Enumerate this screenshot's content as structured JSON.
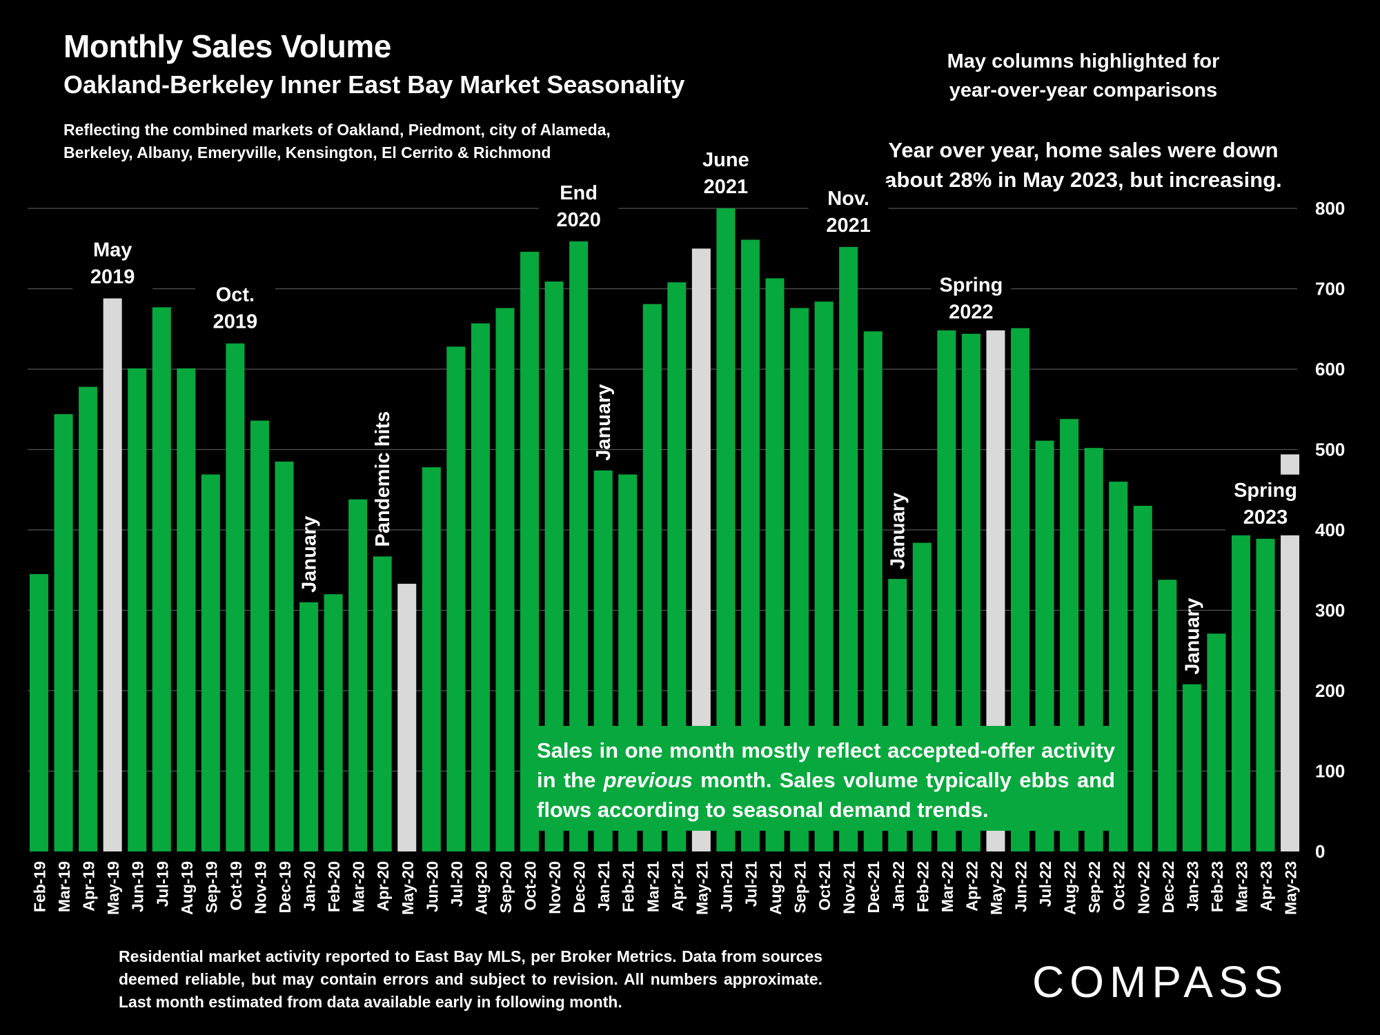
{
  "header": {
    "title": "Monthly Sales Volume",
    "subtitle": "Oakland-Berkeley Inner East Bay Market Seasonality",
    "description_line1": "Reflecting the combined markets of Oakland, Piedmont, city of Alameda,",
    "description_line2": "Berkeley, Albany, Emeryville, Kensington, El Cerrito & Richmond"
  },
  "notes": {
    "may_highlight_line1": "May columns highlighted for",
    "may_highlight_line2": "year-over-year comparisons",
    "yoy_line1": "Year over year, home sales were down",
    "yoy_line2": "about 28% in May 2023, but increasing."
  },
  "green_box": {
    "text_before": "Sales in one month mostly reflect accepted-offer activity in the ",
    "text_italic": "previous",
    "text_after": " month. Sales volume typically ebbs and flows according to seasonal demand trends."
  },
  "footer": {
    "text": "Residential market activity reported to East Bay MLS, per Broker Metrics. Data from sources deemed reliable, but may contain errors and subject to revision. All numbers approximate. Last month estimated from data available early in following month."
  },
  "logo": {
    "text": "COMPASS"
  },
  "colors": {
    "green": "#07a83e",
    "highlight": "#d9d9d9",
    "background": "#000000",
    "grid": "#555555"
  },
  "chart_data": {
    "type": "bar",
    "categories": [
      "Feb-19",
      "Mar-19",
      "Apr-19",
      "May-19",
      "Jun-19",
      "Jul-19",
      "Aug-19",
      "Sep-19",
      "Oct-19",
      "Nov-19",
      "Dec-19",
      "Jan-20",
      "Feb-20",
      "Mar-20",
      "Apr-20",
      "May-20",
      "Jun-20",
      "Jul-20",
      "Aug-20",
      "Sep-20",
      "Oct-20",
      "Nov-20",
      "Dec-20",
      "Jan-21",
      "Feb-21",
      "Mar-21",
      "Apr-21",
      "May-21",
      "Jun-21",
      "Jul-21",
      "Aug-21",
      "Sep-21",
      "Oct-21",
      "Nov-21",
      "Dec-21",
      "Jan-22",
      "Feb-22",
      "Mar-22",
      "Apr-22",
      "May-22",
      "Jun-22",
      "Jul-22",
      "Aug-22",
      "Sep-22",
      "Oct-22",
      "Nov-22",
      "Dec-22",
      "Jan-23",
      "Feb-23",
      "Mar-23",
      "Apr-23",
      "May-23"
    ],
    "values": [
      345,
      544,
      578,
      688,
      601,
      677,
      601,
      469,
      632,
      536,
      485,
      310,
      320,
      438,
      367,
      333,
      478,
      628,
      657,
      676,
      746,
      709,
      759,
      474,
      469,
      681,
      708,
      750,
      800,
      761,
      713,
      676,
      684,
      752,
      647,
      339,
      384,
      664,
      644,
      685,
      651,
      511,
      538,
      502,
      460,
      430,
      338,
      208,
      271,
      425,
      389,
      494
    ],
    "highlighted": [
      "May-19",
      "May-20",
      "May-21",
      "May-22",
      "May-23"
    ],
    "ylim": [
      0,
      800
    ],
    "yticks": [
      0,
      100,
      200,
      300,
      400,
      500,
      600,
      700,
      800
    ],
    "yaxis_position": "right",
    "grid": true,
    "annotations": [
      {
        "category": "May-19",
        "lines": [
          "May",
          "2019"
        ],
        "orientation": "horizontal"
      },
      {
        "category": "Oct-19",
        "lines": [
          "Oct.",
          "2019"
        ],
        "orientation": "horizontal"
      },
      {
        "category": "Jan-20",
        "lines": [
          "January"
        ],
        "orientation": "vertical"
      },
      {
        "category": "Apr-20",
        "lines": [
          "Pandemic hits"
        ],
        "orientation": "vertical"
      },
      {
        "category": "Dec-20",
        "lines": [
          "End",
          "2020"
        ],
        "orientation": "horizontal"
      },
      {
        "category": "Jan-21",
        "lines": [
          "January"
        ],
        "orientation": "vertical"
      },
      {
        "category": "Jun-21",
        "lines": [
          "June",
          "2021"
        ],
        "orientation": "horizontal"
      },
      {
        "category": "Nov-21",
        "lines": [
          "Nov.",
          "2021"
        ],
        "orientation": "horizontal"
      },
      {
        "category": "Jan-22",
        "lines": [
          "January"
        ],
        "orientation": "vertical"
      },
      {
        "category": "Apr-22",
        "lines": [
          "Spring",
          "2022"
        ],
        "orientation": "horizontal"
      },
      {
        "category": "Jan-23",
        "lines": [
          "January"
        ],
        "orientation": "vertical"
      },
      {
        "category": "Apr-23",
        "lines": [
          "Spring",
          "2023"
        ],
        "orientation": "horizontal"
      }
    ]
  }
}
